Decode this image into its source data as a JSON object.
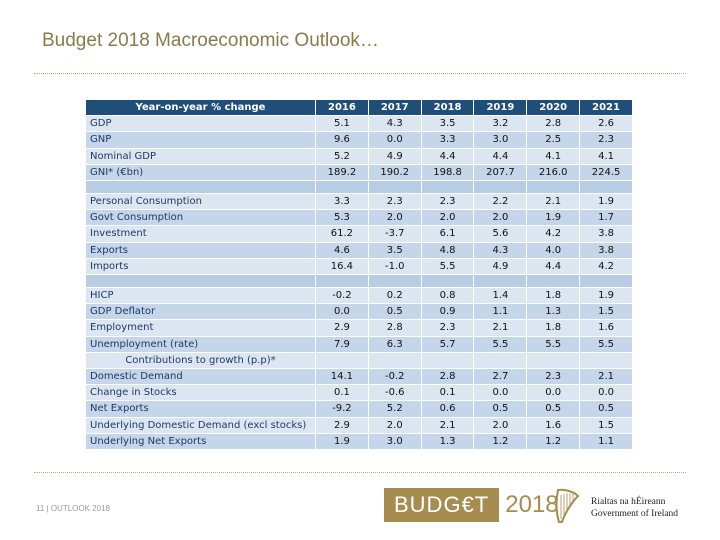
{
  "slide": {
    "title": "Budget 2018 Macroeconomic Outlook…",
    "footer": "11 | OUTLOOK 2018"
  },
  "table": {
    "header_label": "Year-on-year % change",
    "years": [
      "2016",
      "2017",
      "2018",
      "2019",
      "2020",
      "2021"
    ],
    "subheader": "Contributions to growth (p.p)*",
    "groups": [
      [
        {
          "label": "GDP",
          "values": [
            "5.1",
            "4.3",
            "3.5",
            "3.2",
            "2.8",
            "2.6"
          ]
        },
        {
          "label": "GNP",
          "values": [
            "9.6",
            "0.0",
            "3.3",
            "3.0",
            "2.5",
            "2.3"
          ]
        },
        {
          "label": "Nominal GDP",
          "values": [
            "5.2",
            "4.9",
            "4.4",
            "4.4",
            "4.1",
            "4.1"
          ]
        },
        {
          "label": "GNI* (€bn)",
          "values": [
            "189.2",
            "190.2",
            "198.8",
            "207.7",
            "216.0",
            "224.5"
          ]
        }
      ],
      [
        {
          "label": "Personal Consumption",
          "values": [
            "3.3",
            "2.3",
            "2.3",
            "2.2",
            "2.1",
            "1.9"
          ]
        },
        {
          "label": "Govt Consumption",
          "values": [
            "5.3",
            "2.0",
            "2.0",
            "2.0",
            "1.9",
            "1.7"
          ]
        },
        {
          "label": "Investment",
          "values": [
            "61.2",
            "-3.7",
            "6.1",
            "5.6",
            "4.2",
            "3.8"
          ]
        },
        {
          "label": "Exports",
          "values": [
            "4.6",
            "3.5",
            "4.8",
            "4.3",
            "4.0",
            "3.8"
          ]
        },
        {
          "label": "Imports",
          "values": [
            "16.4",
            "-1.0",
            "5.5",
            "4.9",
            "4.4",
            "4.2"
          ]
        }
      ],
      [
        {
          "label": "HICP",
          "values": [
            "-0.2",
            "0.2",
            "0.8",
            "1.4",
            "1.8",
            "1.9"
          ]
        },
        {
          "label": "GDP Deflator",
          "values": [
            "0.0",
            "0.5",
            "0.9",
            "1.1",
            "1.3",
            "1.5"
          ]
        },
        {
          "label": "Employment",
          "values": [
            "2.9",
            "2.8",
            "2.3",
            "2.1",
            "1.8",
            "1.6"
          ]
        },
        {
          "label": "Unemployment (rate)",
          "values": [
            "7.9",
            "6.3",
            "5.7",
            "5.5",
            "5.5",
            "5.5"
          ]
        }
      ]
    ],
    "contributions": [
      {
        "label": "Domestic Demand",
        "values": [
          "14.1",
          "-0.2",
          "2.8",
          "2.7",
          "2.3",
          "2.1"
        ]
      },
      {
        "label": "Change in Stocks",
        "values": [
          "0.1",
          "-0.6",
          "0.1",
          "0.0",
          "0.0",
          "0.0"
        ]
      },
      {
        "label": "Net Exports",
        "values": [
          "-9.2",
          "5.2",
          "0.6",
          "0.5",
          "0.5",
          "0.5"
        ]
      },
      {
        "label": "Underlying Domestic Demand (excl stocks)",
        "values": [
          "2.9",
          "2.0",
          "2.1",
          "2.0",
          "1.6",
          "1.5"
        ]
      },
      {
        "label": "Underlying Net Exports",
        "values": [
          "1.9",
          "3.0",
          "1.3",
          "1.2",
          "1.2",
          "1.1"
        ]
      }
    ]
  },
  "logos": {
    "budget_word": "BUDG€T",
    "budget_year": "2018",
    "gov_irish": "Rialtas na hÉireann",
    "gov_english": "Government of Ireland",
    "harp_icon": "harp-icon",
    "colors": {
      "gold": "#a78c4f",
      "header_blue": "#1f4e79",
      "row_light": "#dce6f1",
      "row_mid": "#c5d5ea",
      "gap": "#b8cce4"
    }
  }
}
